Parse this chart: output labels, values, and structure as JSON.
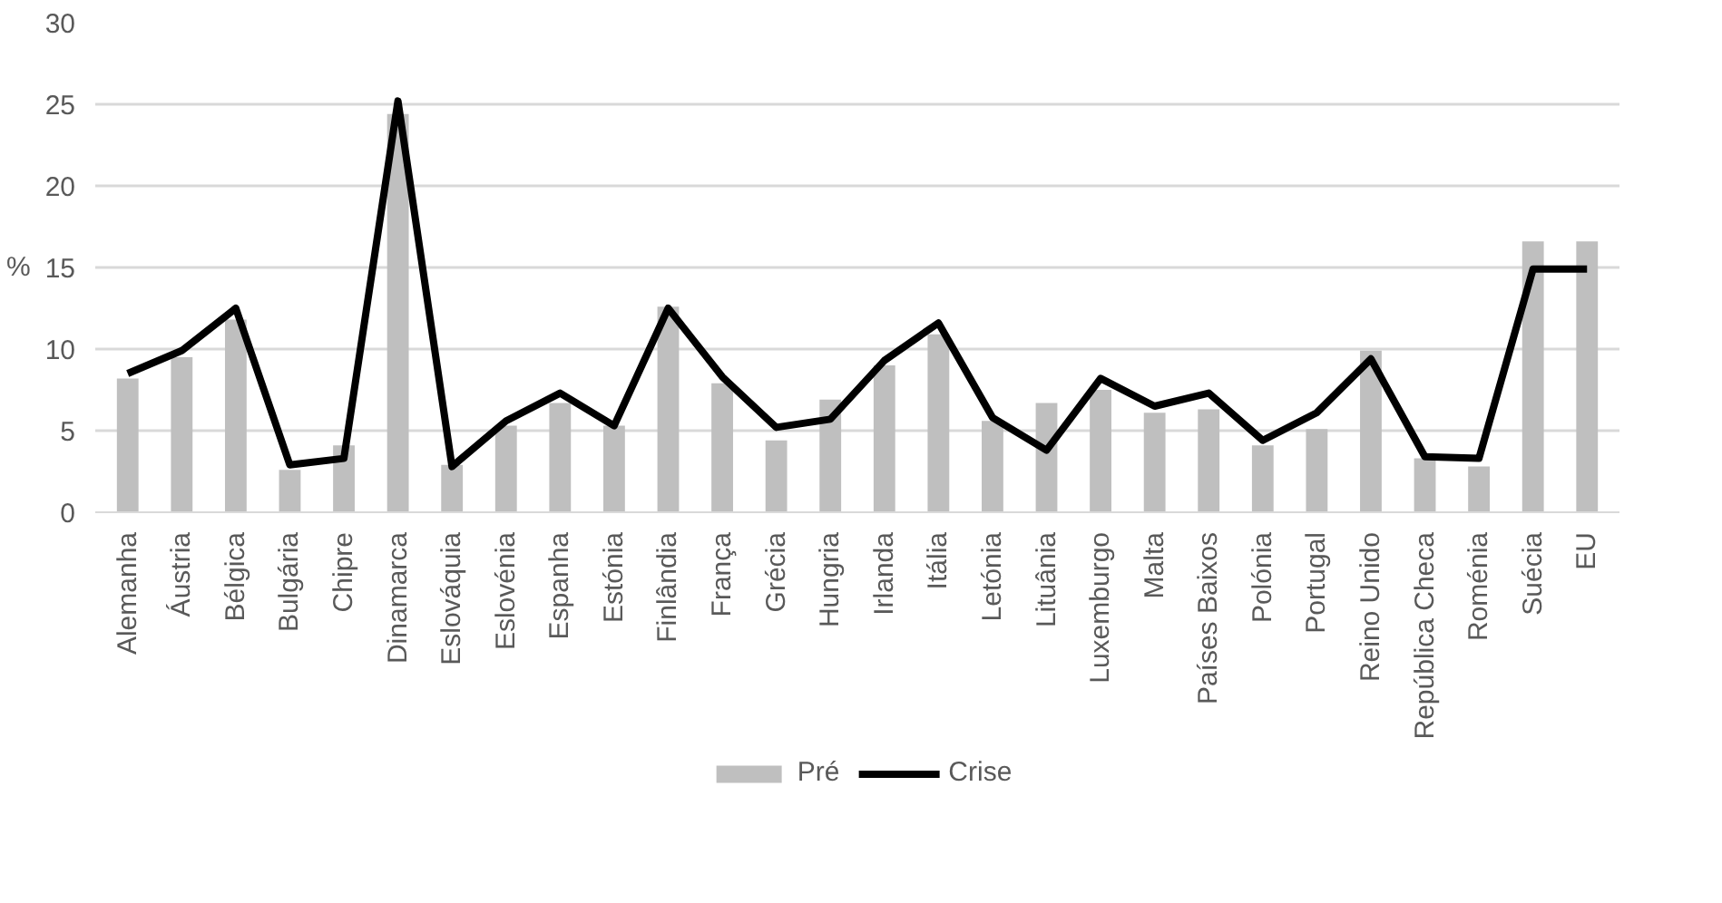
{
  "chart_data": {
    "type": "bar",
    "ylabel": "%",
    "categories": [
      "Alemanha",
      "Áustria",
      "Bélgica",
      "Bulgária",
      "Chipre",
      "Dinamarca",
      "Eslováquia",
      "Eslovénia",
      "Espanha",
      "Estónia",
      "Finlândia",
      "França",
      "Grécia",
      "Hungria",
      "Irlanda",
      "Itália",
      "Letónia",
      "Lituânia",
      "Luxemburgo",
      "Malta",
      "Países Baixos",
      "Polónia",
      "Portugal",
      "Reino Unido",
      "República Checa",
      "Roménia",
      "Suécia",
      "EU"
    ],
    "series": [
      {
        "name": "Pré",
        "color": "#bfbfbf",
        "values": [
          8.2,
          9.5,
          11.8,
          2.6,
          4.1,
          24.4,
          2.9,
          5.3,
          6.7,
          5.3,
          12.6,
          7.9,
          4.4,
          6.9,
          9.0,
          10.9,
          5.6,
          6.7,
          7.5,
          6.1,
          6.3,
          4.1,
          5.1,
          9.9,
          3.3,
          2.8,
          16.6,
          16.6
        ]
      },
      {
        "name": "Crise",
        "type": "line",
        "color": "#000000",
        "values": [
          8.5,
          9.9,
          12.5,
          2.9,
          3.3,
          25.2,
          2.8,
          5.6,
          7.3,
          5.3,
          12.5,
          8.3,
          5.2,
          5.7,
          9.3,
          11.6,
          5.8,
          3.8,
          8.2,
          6.5,
          7.3,
          4.4,
          6.1,
          9.4,
          3.4,
          3.3,
          14.9,
          14.9
        ]
      }
    ],
    "ylim": [
      0,
      30
    ],
    "yticks": [
      0,
      5,
      10,
      15,
      20,
      25,
      30
    ],
    "grid": "y",
    "legend": "bottom",
    "line_style": "solid",
    "marker": "none"
  }
}
